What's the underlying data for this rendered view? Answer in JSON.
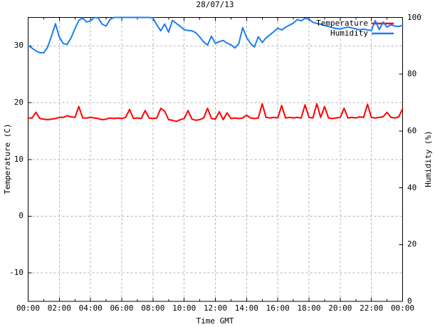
{
  "title": "28/07/13",
  "colors": {
    "background": "#ffffff",
    "axis": "#000000",
    "grid": "#b0b0b0",
    "temperature": "#ff0000",
    "humidity": "#1c7ef0"
  },
  "legend": {
    "position": "top-right",
    "entries": [
      {
        "label": "Temperature",
        "color": "#ff0000"
      },
      {
        "label": "Humidity",
        "color": "#1c7ef0"
      }
    ]
  },
  "chart_data": {
    "type": "line",
    "title": "28/07/13",
    "xlabel": "Time GMT",
    "ylabel": "Temperature (C)",
    "y2label": "Humidity (%)",
    "grid": true,
    "legend_position": "top-right",
    "x_unit": "hours",
    "x_range": [
      0,
      24
    ],
    "x_start_hour": 0,
    "x_step_hours": 0.25,
    "x_tick_hours": [
      0,
      2,
      4,
      6,
      8,
      10,
      12,
      14,
      16,
      18,
      20,
      22,
      24
    ],
    "x_tick_labels": [
      "00:00",
      "02:00",
      "04:00",
      "06:00",
      "08:00",
      "10:00",
      "12:00",
      "14:00",
      "16:00",
      "18:00",
      "20:00",
      "22:00",
      "00:00"
    ],
    "x_minor_tick_hours": 1,
    "y_left": {
      "label": "Temperature (C)",
      "range": [
        -15,
        35
      ],
      "ticks": [
        -10,
        0,
        10,
        20,
        30
      ]
    },
    "y_right": {
      "label": "Humidity (%)",
      "range": [
        0,
        100
      ],
      "ticks": [
        0,
        20,
        40,
        60,
        80,
        100
      ]
    },
    "series": [
      {
        "name": "Temperature",
        "axis": "left",
        "color": "#ff0000",
        "values": [
          17.3,
          17.3,
          18.3,
          17.2,
          17.1,
          17.0,
          17.1,
          17.2,
          17.4,
          17.4,
          17.7,
          17.5,
          17.4,
          19.3,
          17.3,
          17.3,
          17.4,
          17.3,
          17.2,
          17.0,
          17.1,
          17.3,
          17.2,
          17.3,
          17.2,
          17.4,
          18.8,
          17.2,
          17.3,
          17.2,
          18.6,
          17.3,
          17.2,
          17.3,
          19.0,
          18.5,
          17.0,
          16.9,
          16.7,
          17.0,
          17.2,
          18.6,
          17.1,
          16.9,
          17.0,
          17.3,
          19.0,
          17.2,
          17.1,
          18.4,
          17.0,
          18.2,
          17.2,
          17.3,
          17.2,
          17.3,
          17.8,
          17.3,
          17.2,
          17.3,
          19.8,
          17.4,
          17.3,
          17.4,
          17.3,
          19.5,
          17.3,
          17.4,
          17.3,
          17.4,
          17.3,
          19.6,
          17.4,
          17.3,
          19.8,
          17.4,
          19.3,
          17.3,
          17.2,
          17.3,
          17.4,
          19.0,
          17.3,
          17.4,
          17.3,
          17.5,
          17.4,
          19.7,
          17.4,
          17.3,
          17.4,
          17.5,
          18.3,
          17.4,
          17.3,
          17.5,
          18.9
        ]
      },
      {
        "name": "Humidity",
        "axis": "right",
        "color": "#1c7ef0",
        "values": [
          90.1,
          89.2,
          88.2,
          87.6,
          87.5,
          89.5,
          93.5,
          97.8,
          93.1,
          90.8,
          90.5,
          92.8,
          96.0,
          99.0,
          99.8,
          98.4,
          98.8,
          100.0,
          99.8,
          97.6,
          97.0,
          99.3,
          100.0,
          100.0,
          100.0,
          100.0,
          100.0,
          100.0,
          100.0,
          100.0,
          100.0,
          100.0,
          99.8,
          97.4,
          95.3,
          97.7,
          94.8,
          99.0,
          97.9,
          96.9,
          95.7,
          95.4,
          95.3,
          94.6,
          93.1,
          91.4,
          90.3,
          93.4,
          90.9,
          91.5,
          91.9,
          91.0,
          90.4,
          89.2,
          90.8,
          96.4,
          93.0,
          90.9,
          89.6,
          93.2,
          91.2,
          92.8,
          93.9,
          95.0,
          96.2,
          95.6,
          96.5,
          97.3,
          98.0,
          99.3,
          98.8,
          99.7,
          99.4,
          98.3,
          97.9,
          97.6,
          97.2,
          96.8,
          96.4,
          96.1,
          95.9,
          96.3,
          96.6,
          96.3,
          96.0,
          95.6,
          95.9,
          95.6,
          95.4,
          98.9,
          95.7,
          98.4,
          96.6,
          97.4,
          97.0,
          96.8,
          97.3
        ]
      }
    ]
  }
}
